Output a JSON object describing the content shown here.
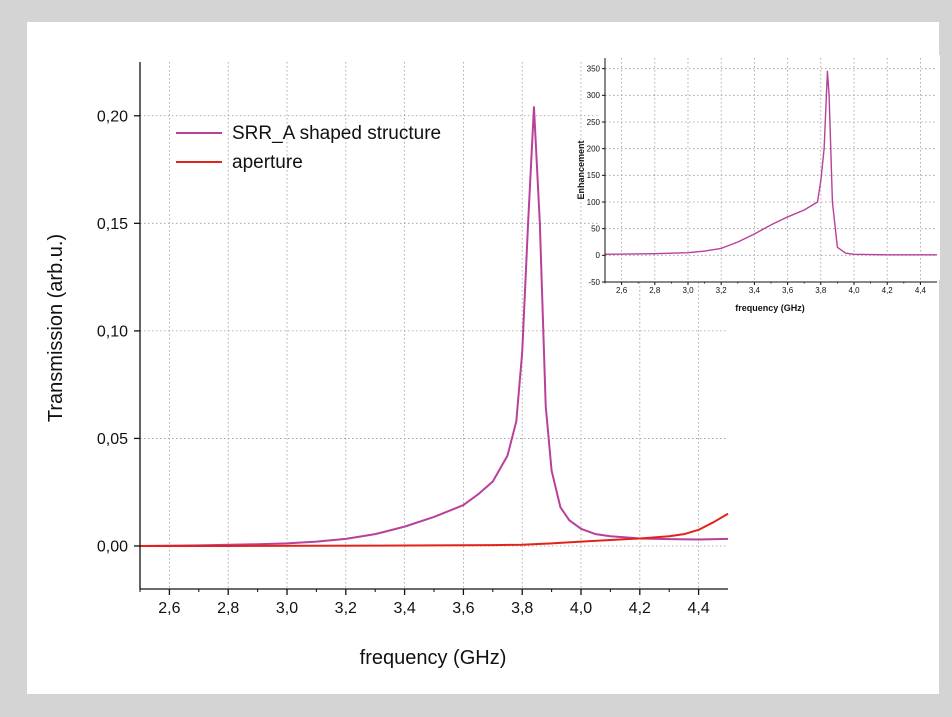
{
  "colors": {
    "srr": "#b8409a",
    "aperture": "#e2231a",
    "grid": "#9a9a9a",
    "axis": "#111111",
    "background": "#d4d4d4",
    "panel": "#ffffff"
  },
  "chart_data": [
    {
      "id": "main",
      "type": "line",
      "xlabel": "frequency (GHz)",
      "ylabel": "Transmission (arb.u.)",
      "xlim": [
        2.5,
        4.5
      ],
      "ylim": [
        -0.02,
        0.225
      ],
      "xticks": [
        2.6,
        2.8,
        3.0,
        3.2,
        3.4,
        3.6,
        3.8,
        4.0,
        4.2,
        4.4
      ],
      "xtick_labels": [
        "2,6",
        "2,8",
        "3,0",
        "3,2",
        "3,4",
        "3,6",
        "3,8",
        "4,0",
        "4,2",
        "4,4"
      ],
      "yticks": [
        0.0,
        0.05,
        0.1,
        0.15,
        0.2
      ],
      "ytick_labels": [
        "0,00",
        "0,05",
        "0,10",
        "0,15",
        "0,20"
      ],
      "grid": true,
      "legend": "top-left",
      "series": [
        {
          "name": "SRR_A shaped structure",
          "color": "#b8409a",
          "x": [
            2.5,
            2.7,
            2.9,
            3.0,
            3.1,
            3.2,
            3.3,
            3.4,
            3.5,
            3.6,
            3.65,
            3.7,
            3.75,
            3.78,
            3.8,
            3.82,
            3.84,
            3.86,
            3.88,
            3.9,
            3.93,
            3.96,
            4.0,
            4.05,
            4.1,
            4.2,
            4.3,
            4.4,
            4.5
          ],
          "y": [
            0.0,
            0.0003,
            0.0008,
            0.0012,
            0.002,
            0.0033,
            0.0055,
            0.009,
            0.0135,
            0.019,
            0.024,
            0.03,
            0.042,
            0.058,
            0.09,
            0.15,
            0.204,
            0.15,
            0.065,
            0.035,
            0.018,
            0.012,
            0.008,
            0.0055,
            0.0045,
            0.0035,
            0.0032,
            0.003,
            0.0033
          ]
        },
        {
          "name": "aperture",
          "color": "#e2231a",
          "x": [
            2.5,
            2.8,
            3.1,
            3.4,
            3.7,
            3.8,
            3.9,
            4.0,
            4.1,
            4.2,
            4.3,
            4.35,
            4.4,
            4.45,
            4.5
          ],
          "y": [
            0.0,
            0.0,
            0.0001,
            0.0002,
            0.0004,
            0.0006,
            0.0012,
            0.002,
            0.0028,
            0.0035,
            0.0045,
            0.0055,
            0.0075,
            0.011,
            0.015
          ]
        }
      ]
    },
    {
      "id": "inset",
      "type": "line",
      "xlabel": "frequency (GHz)",
      "ylabel": "Enhancement",
      "xlim": [
        2.5,
        4.5
      ],
      "ylim": [
        -50,
        370
      ],
      "xticks": [
        2.6,
        2.8,
        3.0,
        3.2,
        3.4,
        3.6,
        3.8,
        4.0,
        4.2,
        4.4
      ],
      "xtick_labels": [
        "2,6",
        "2,8",
        "3,0",
        "3,2",
        "3,4",
        "3,6",
        "3,8",
        "4,0",
        "4,2",
        "4,4"
      ],
      "yticks": [
        -50,
        0,
        50,
        100,
        150,
        200,
        250,
        300,
        350
      ],
      "ytick_labels": [
        "-50",
        "0",
        "50",
        "100",
        "150",
        "200",
        "250",
        "300",
        "350"
      ],
      "grid": true,
      "series": [
        {
          "color": "#b8409a",
          "x": [
            2.5,
            2.8,
            3.0,
            3.1,
            3.2,
            3.3,
            3.4,
            3.5,
            3.6,
            3.7,
            3.78,
            3.8,
            3.82,
            3.84,
            3.85,
            3.87,
            3.9,
            3.95,
            4.0,
            4.2,
            4.5
          ],
          "y": [
            2,
            3,
            5,
            8,
            13,
            25,
            40,
            57,
            72,
            85,
            100,
            140,
            200,
            345,
            300,
            100,
            15,
            4,
            2,
            1,
            1
          ]
        }
      ]
    }
  ]
}
